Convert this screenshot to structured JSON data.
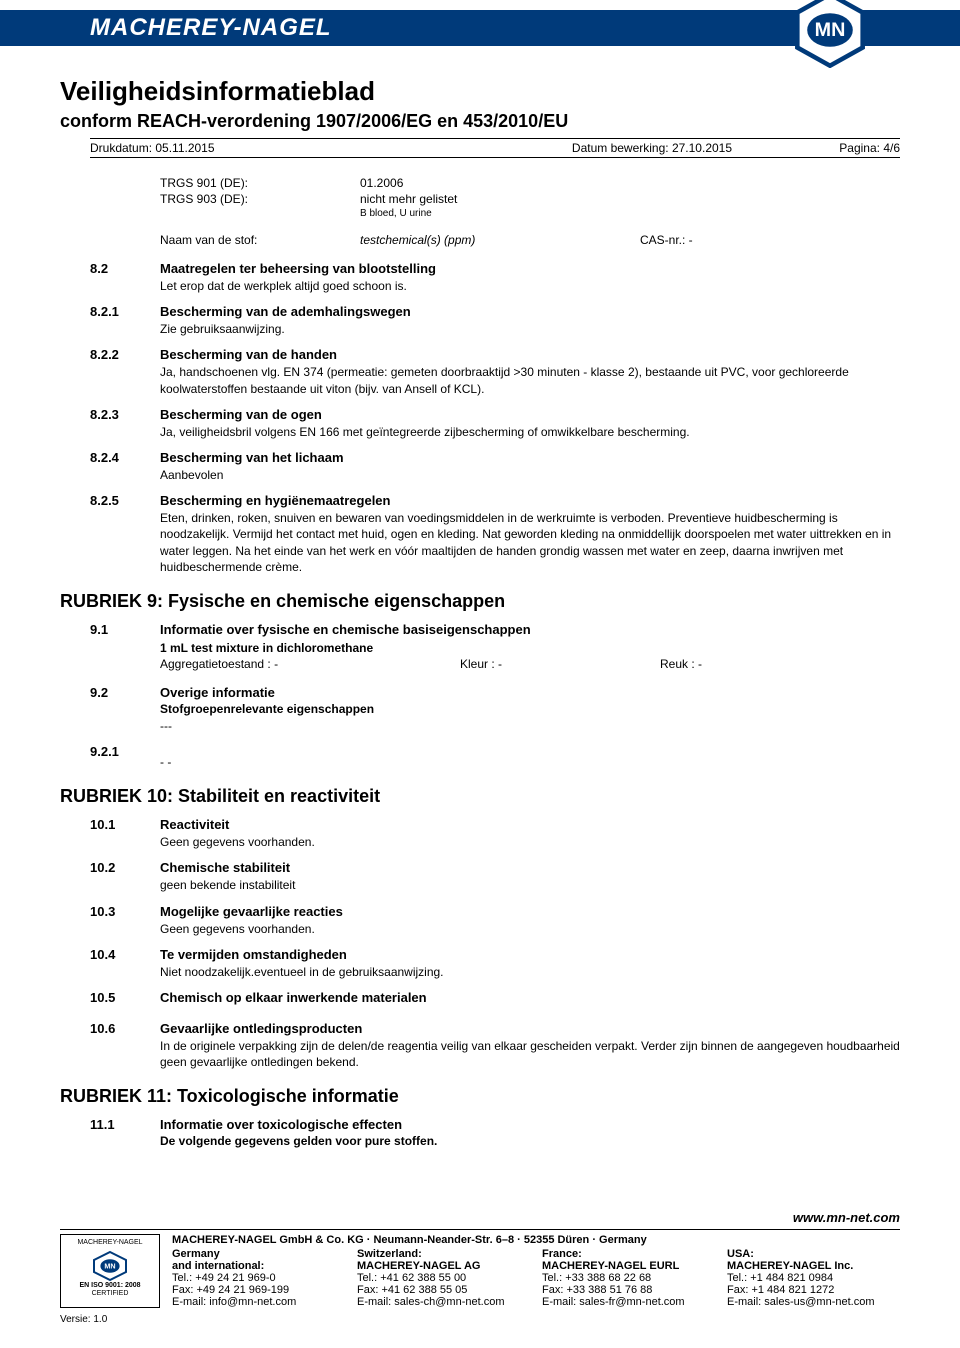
{
  "brand": "MACHEREY-NAGEL",
  "logo_text": "MN",
  "doc_title": "Veiligheidsinformatieblad",
  "doc_subtitle": "conform REACH-verordening 1907/2006/EG en 453/2010/EU",
  "meta": {
    "print_date": "Drukdatum: 05.11.2015",
    "edit_date": "Datum bewerking: 27.10.2015",
    "page": "Pagina: 4/6"
  },
  "top_data": {
    "trgs901_label": "TRGS 901 (DE):",
    "trgs901_value": "01.2006",
    "trgs903_label": "TRGS 903 (DE):",
    "trgs903_value": "nicht mehr gelistet",
    "trgs903_note": "B  bloed, U  urine"
  },
  "substance": {
    "label": "Naam van de stof:",
    "value": "testchemical(s) (ppm)",
    "cas": "CAS-nr.: -"
  },
  "sections_8": [
    {
      "num": "8.2",
      "title": "Maatregelen ter beheersing van blootstelling",
      "text": "Let erop dat de werkplek altijd goed schoon is."
    },
    {
      "num": "8.2.1",
      "title": "Bescherming van de ademhalingswegen",
      "text": "Zie gebruiksaanwijzing."
    },
    {
      "num": "8.2.2",
      "title": "Bescherming van de handen",
      "text": "Ja, handschoenen vlg. EN 374 (permeatie: gemeten doorbraaktijd >30 minuten - klasse 2), bestaande uit PVC, voor gechloreerde koolwaterstoffen bestaande uit viton (bijv. van Ansell of KCL)."
    },
    {
      "num": "8.2.3",
      "title": "Bescherming van de ogen",
      "text": "Ja, veiligheidsbril volgens EN 166 met geïntegreerde zijbescherming of omwikkelbare bescherming."
    },
    {
      "num": "8.2.4",
      "title": "Bescherming van het lichaam",
      "text": "Aanbevolen"
    },
    {
      "num": "8.2.5",
      "title": "Bescherming en hygiënemaatregelen",
      "text": "Eten, drinken, roken, snuiven en bewaren van voedingsmiddelen in de werkruimte is verboden. Preventieve huidbescherming is noodzakelijk. Vermijd het contact met huid, ogen en kleding. Nat geworden kleding na onmiddellijk doorspoelen met water uittrekken en in water leggen. Na het einde van het werk en vóór maaltijden de handen grondig wassen met water en zeep, daarna inwrijven met huidbeschermende crème."
    }
  ],
  "rubriek9": {
    "heading": "RUBRIEK 9: Fysische en chemische eigenschappen",
    "s91_num": "9.1",
    "s91_title": "Informatie over fysische en chemische basiseigenschappen",
    "s91_bold": "1 mL test mixture in dichloromethane",
    "s91_agg": "Aggregatietoestand : -",
    "s91_kleur": "Kleur : -",
    "s91_reuk": "Reuk : -",
    "s92_num": "9.2",
    "s92_title": "Overige informatie",
    "s92_sub": "Stofgroepenrelevante eigenschappen",
    "s92_text": "---",
    "s921_num": "9.2.1",
    "s921_text": "- -"
  },
  "rubriek10": {
    "heading": "RUBRIEK 10: Stabiliteit en reactiviteit",
    "items": [
      {
        "num": "10.1",
        "title": "Reactiviteit",
        "text": "Geen gegevens voorhanden."
      },
      {
        "num": "10.2",
        "title": "Chemische stabiliteit",
        "text": "geen bekende instabiliteit"
      },
      {
        "num": "10.3",
        "title": "Mogelijke gevaarlijke reacties",
        "text": "Geen gegevens voorhanden."
      },
      {
        "num": "10.4",
        "title": "Te vermijden omstandigheden",
        "text": "Niet noodzakelijk.eventueel in de gebruiksaanwijzing."
      },
      {
        "num": "10.5",
        "title": "Chemisch op elkaar inwerkende materialen",
        "text": ""
      },
      {
        "num": "10.6",
        "title": "Gevaarlijke ontledingsproducten",
        "text": "In de originele verpakking zijn de delen/de reagentia veilig van elkaar gescheiden verpakt. Verder zijn binnen de aangegeven houdbaarheid geen gevaarlijke ontledingen bekend."
      }
    ]
  },
  "rubriek11": {
    "heading": "RUBRIEK 11: Toxicologische informatie",
    "num": "11.1",
    "title": "Informatie over toxicologische effecten",
    "text": "De volgende gegevens gelden voor pure stoffen."
  },
  "footer": {
    "url": "www.mn-net.com",
    "company_line": "MACHEREY-NAGEL GmbH & Co. KG · Neumann-Neander-Str. 6–8 · 52355 Düren · Germany",
    "cert_top": "MACHEREY-NAGEL",
    "cert_iso": "EN ISO 9001: 2008",
    "cert_cert": "CERTIFIED",
    "cols": [
      {
        "country": "Germany",
        "sub": "and international:",
        "tel": "Tel.:    +49 24 21 969-0",
        "fax": "Fax:    +49 24 21 969-199",
        "email": "E-mail: info@mn-net.com"
      },
      {
        "country": "Switzerland:",
        "sub": "MACHEREY-NAGEL AG",
        "tel": "Tel.:    +41 62 388 55 00",
        "fax": "Fax:    +41 62 388 55 05",
        "email": "E-mail: sales-ch@mn-net.com"
      },
      {
        "country": "France:",
        "sub": "MACHEREY-NAGEL EURL",
        "tel": "Tel.:    +33 388 68 22 68",
        "fax": "Fax:    +33 388 51 76 88",
        "email": "E-mail: sales-fr@mn-net.com"
      },
      {
        "country": "USA:",
        "sub": "MACHEREY-NAGEL Inc.",
        "tel": "Tel.:    +1 484 821 0984",
        "fax": "Fax:    +1 484 821 1272",
        "email": "E-mail: sales-us@mn-net.com"
      }
    ],
    "version": "Versie: 1.0"
  },
  "colors": {
    "brand_blue": "#003a7a",
    "text": "#000000",
    "background": "#ffffff"
  }
}
